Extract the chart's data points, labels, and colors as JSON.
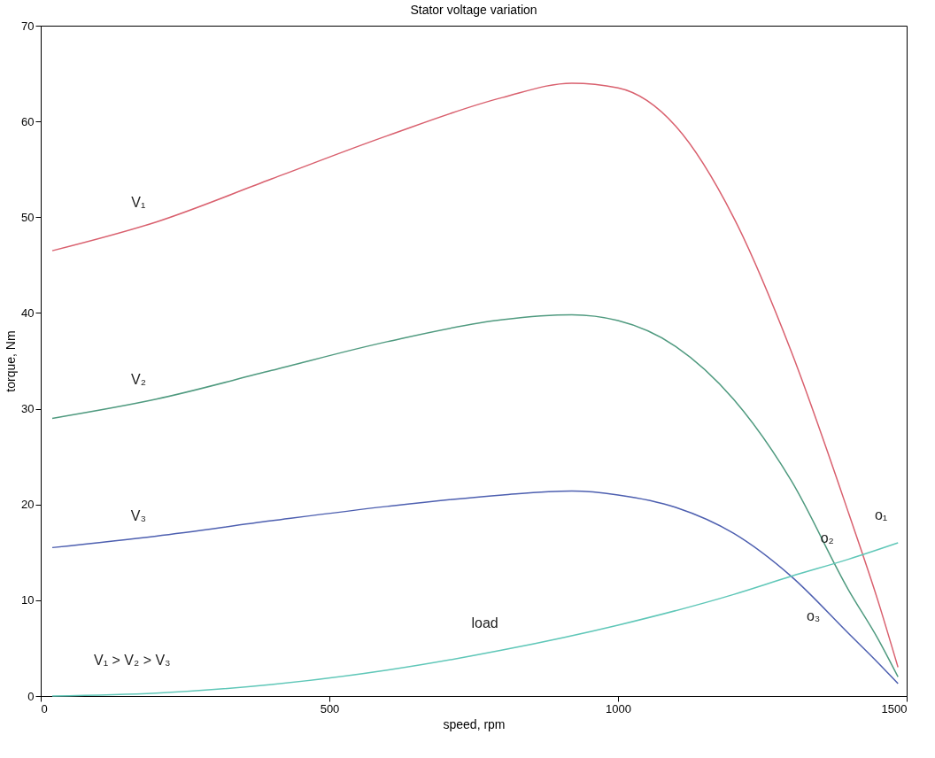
{
  "chart_data": {
    "type": "line",
    "title": "Stator voltage variation",
    "xlabel": "speed, rpm",
    "ylabel": "torque, Nm",
    "xlim": [
      0,
      1500
    ],
    "ylim": [
      0,
      70
    ],
    "xticks": [
      0,
      500,
      1000,
      1500
    ],
    "yticks": [
      0,
      10,
      20,
      30,
      40,
      50,
      60,
      70
    ],
    "grid": false,
    "marker": "none",
    "line_style": "solid",
    "x": [
      20,
      200,
      400,
      600,
      800,
      920,
      1000,
      1100,
      1200,
      1300,
      1400,
      1450,
      1485
    ],
    "series": [
      {
        "name": "V₁",
        "color": "#d9606e",
        "values": [
          46.5,
          49.5,
          54,
          58.5,
          62.5,
          64,
          63.5,
          59.5,
          50,
          36,
          19,
          10,
          3
        ]
      },
      {
        "name": "V₂",
        "color": "#4f9a7f",
        "values": [
          29,
          31,
          34,
          37,
          39.3,
          39.8,
          39.2,
          36.5,
          31,
          22.5,
          11,
          6,
          2
        ]
      },
      {
        "name": "V₃",
        "color": "#4d5fb0",
        "values": [
          15.5,
          16.7,
          18.3,
          19.8,
          21,
          21.4,
          21,
          19.7,
          17,
          12.5,
          6.5,
          3.5,
          1.3
        ]
      },
      {
        "name": "load",
        "color": "#5fc7b8",
        "x": [
          20,
          200,
          400,
          600,
          800,
          1000,
          1200,
          1300,
          1400,
          1485
        ],
        "values": [
          0,
          0.3,
          1.2,
          2.7,
          4.8,
          7.4,
          10.6,
          12.5,
          14.3,
          16
        ]
      }
    ],
    "annotations": [
      "V₁ > V₂ > V₃",
      {
        "text": "o₁",
        "x": 1425,
        "y": 14.7
      },
      {
        "text": "o₂",
        "x": 1370,
        "y": 13.7
      },
      {
        "text": "o₃",
        "x": 1300,
        "y": 12.5
      }
    ]
  }
}
